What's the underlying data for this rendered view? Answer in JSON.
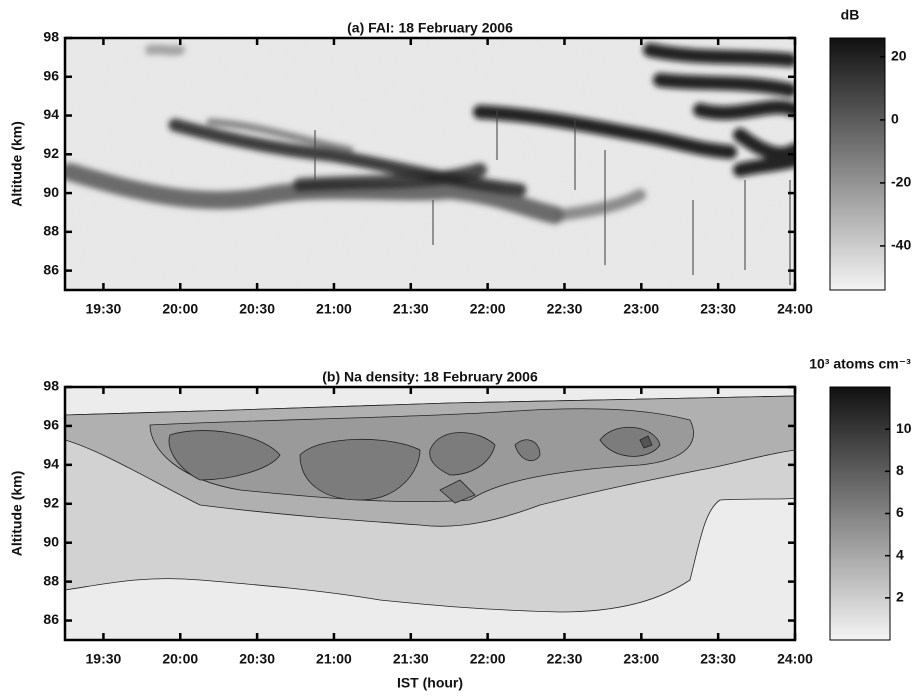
{
  "chart_data": [
    {
      "type": "heatmap",
      "title": "(a) FAI: 18 February 2006",
      "ylabel": "Altitude (km)",
      "xlim": [
        19.25,
        24
      ],
      "xticks": [
        {
          "value": 19.5,
          "label": "19:30"
        },
        {
          "value": 20,
          "label": "20:00"
        },
        {
          "value": 20.5,
          "label": "20:30"
        },
        {
          "value": 21,
          "label": "21:00"
        },
        {
          "value": 21.5,
          "label": "21:30"
        },
        {
          "value": 22,
          "label": "22:00"
        },
        {
          "value": 22.5,
          "label": "22:30"
        },
        {
          "value": 23,
          "label": "23:00"
        },
        {
          "value": 23.5,
          "label": "23:30"
        },
        {
          "value": 24,
          "label": "24:00"
        }
      ],
      "ylim": [
        85,
        98
      ],
      "yticks": [
        86,
        88,
        90,
        92,
        94,
        96,
        98
      ],
      "colorbar_label": "dB",
      "clim": [
        -54,
        26
      ],
      "cticks": [
        -40,
        -20,
        0,
        20
      ]
    },
    {
      "type": "contour",
      "title": "(b) Na density: 18 February 2006",
      "ylabel": "Altitude (km)",
      "xlabel": "IST (hour)",
      "xlim": [
        19.25,
        24
      ],
      "xticks": [
        {
          "value": 19.5,
          "label": "19:30"
        },
        {
          "value": 20,
          "label": "20:00"
        },
        {
          "value": 20.5,
          "label": "20:30"
        },
        {
          "value": 21,
          "label": "21:00"
        },
        {
          "value": 21.5,
          "label": "21:30"
        },
        {
          "value": 22,
          "label": "22:00"
        },
        {
          "value": 22.5,
          "label": "22:30"
        },
        {
          "value": 23,
          "label": "23:00"
        },
        {
          "value": 23.5,
          "label": "23:30"
        },
        {
          "value": 24,
          "label": "24:00"
        }
      ],
      "ylim": [
        85,
        98
      ],
      "yticks": [
        86,
        88,
        90,
        92,
        94,
        96,
        98
      ],
      "colorbar_label": "10³ atoms cm⁻³",
      "clim": [
        0,
        12
      ],
      "cticks": [
        2,
        4,
        6,
        8,
        10
      ]
    }
  ]
}
